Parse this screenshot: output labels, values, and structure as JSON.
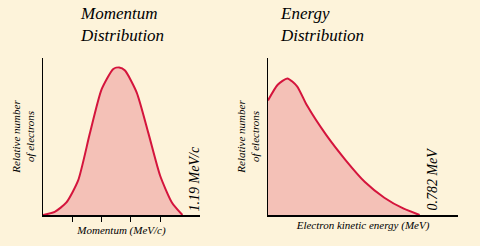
{
  "chart_data": [
    {
      "type": "area",
      "title": "Momentum Distribution",
      "x_label": "Momentum (MeV/c)",
      "y_label": "Relative number of electrons",
      "x": [
        0,
        0.1,
        0.2,
        0.3,
        0.4,
        0.5,
        0.6,
        0.65,
        0.7,
        0.8,
        0.9,
        1.0,
        1.1,
        1.19
      ],
      "values": [
        0,
        0.02,
        0.08,
        0.22,
        0.52,
        0.8,
        0.93,
        0.94,
        0.92,
        0.78,
        0.52,
        0.25,
        0.08,
        0
      ],
      "color": "#d4143c",
      "xlim": [
        0,
        1.34
      ],
      "ylim": [
        0,
        1
      ],
      "xticks": [
        0.25,
        0.5,
        0.75,
        1.0
      ],
      "tick_labels": false,
      "grid": false,
      "annotations": [
        {
          "text": "1.19 MeV/c",
          "x": 1.19
        }
      ]
    },
    {
      "type": "area",
      "title": "Energy Distribution",
      "x_label": "Electron kinetic energy (MeV)",
      "y_label": "Relative number of electrons",
      "x": [
        0,
        0.05,
        0.1,
        0.15,
        0.2,
        0.3,
        0.4,
        0.5,
        0.6,
        0.7,
        0.782
      ],
      "values": [
        0.73,
        0.83,
        0.87,
        0.82,
        0.7,
        0.51,
        0.35,
        0.21,
        0.11,
        0.04,
        0
      ],
      "color": "#d4143c",
      "xlim": [
        0,
        0.98
      ],
      "ylim": [
        0,
        1
      ],
      "tick_labels": false,
      "grid": false,
      "annotations": [
        {
          "text": "0.782 MeV",
          "x": 0.782
        }
      ]
    }
  ]
}
